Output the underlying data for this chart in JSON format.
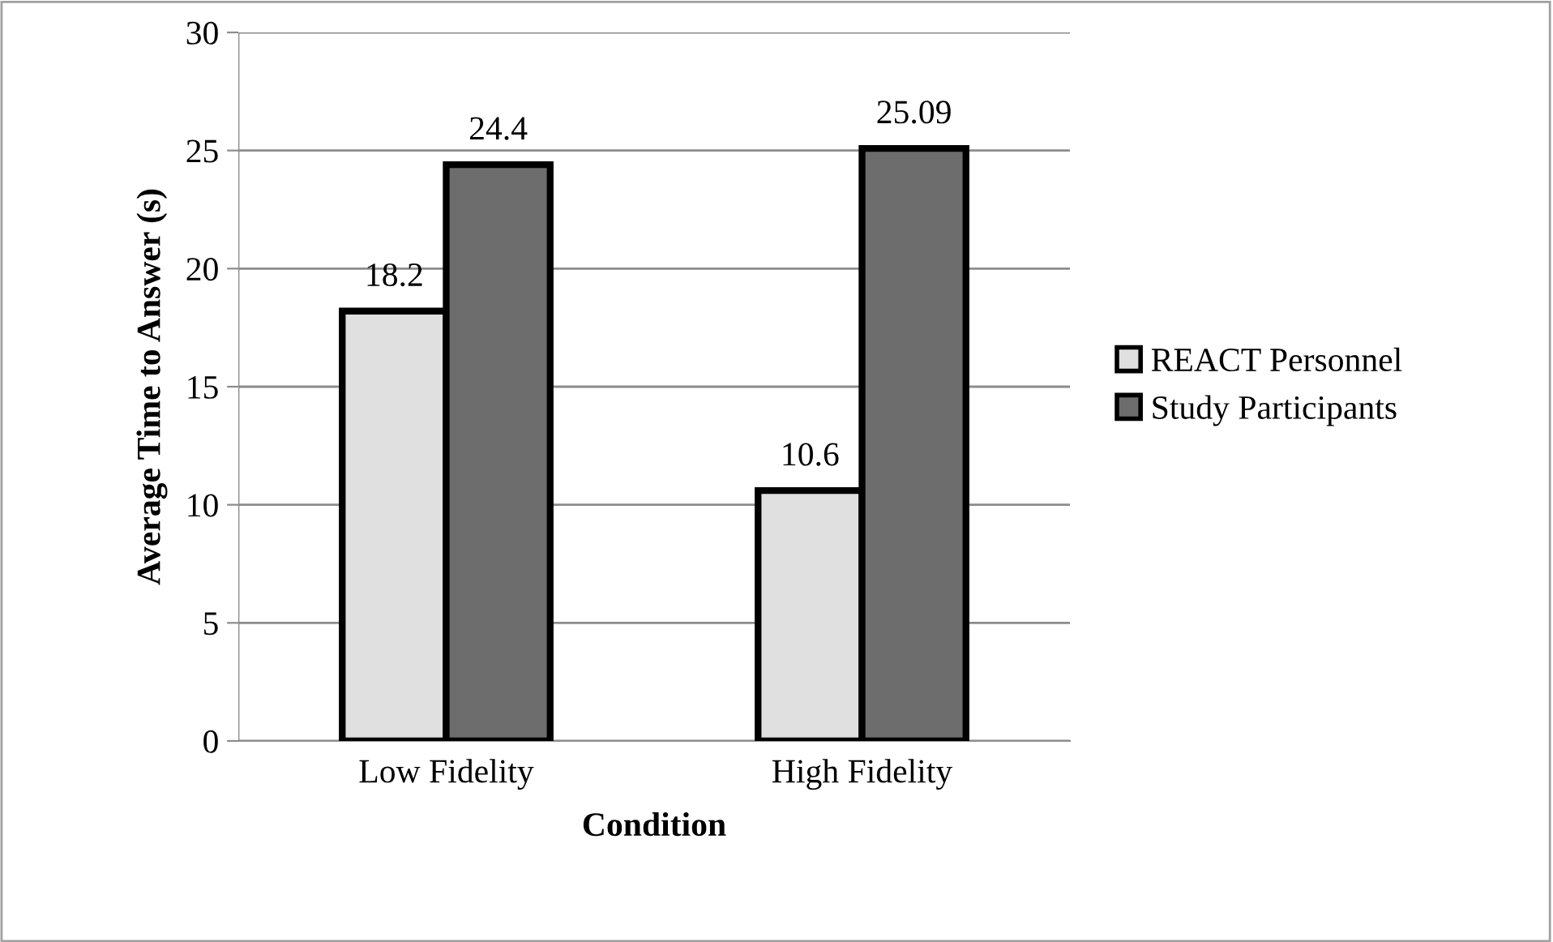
{
  "chart_data": {
    "type": "bar",
    "xlabel": "Condition",
    "ylabel": "Average Time to Answer (s)",
    "categories": [
      "Low Fidelity",
      "High Fidelity"
    ],
    "series": [
      {
        "name": "REACT Personnel",
        "color": "#e0e0e0",
        "values": [
          18.2,
          10.6
        ]
      },
      {
        "name": "Study Participants",
        "color": "#6d6d6d",
        "values": [
          24.4,
          25.09
        ]
      }
    ],
    "ylim": [
      0,
      30
    ],
    "yticks": [
      0,
      5,
      10,
      15,
      20,
      25,
      30
    ],
    "grid": "y",
    "legend": "right",
    "data_labels": true
  }
}
